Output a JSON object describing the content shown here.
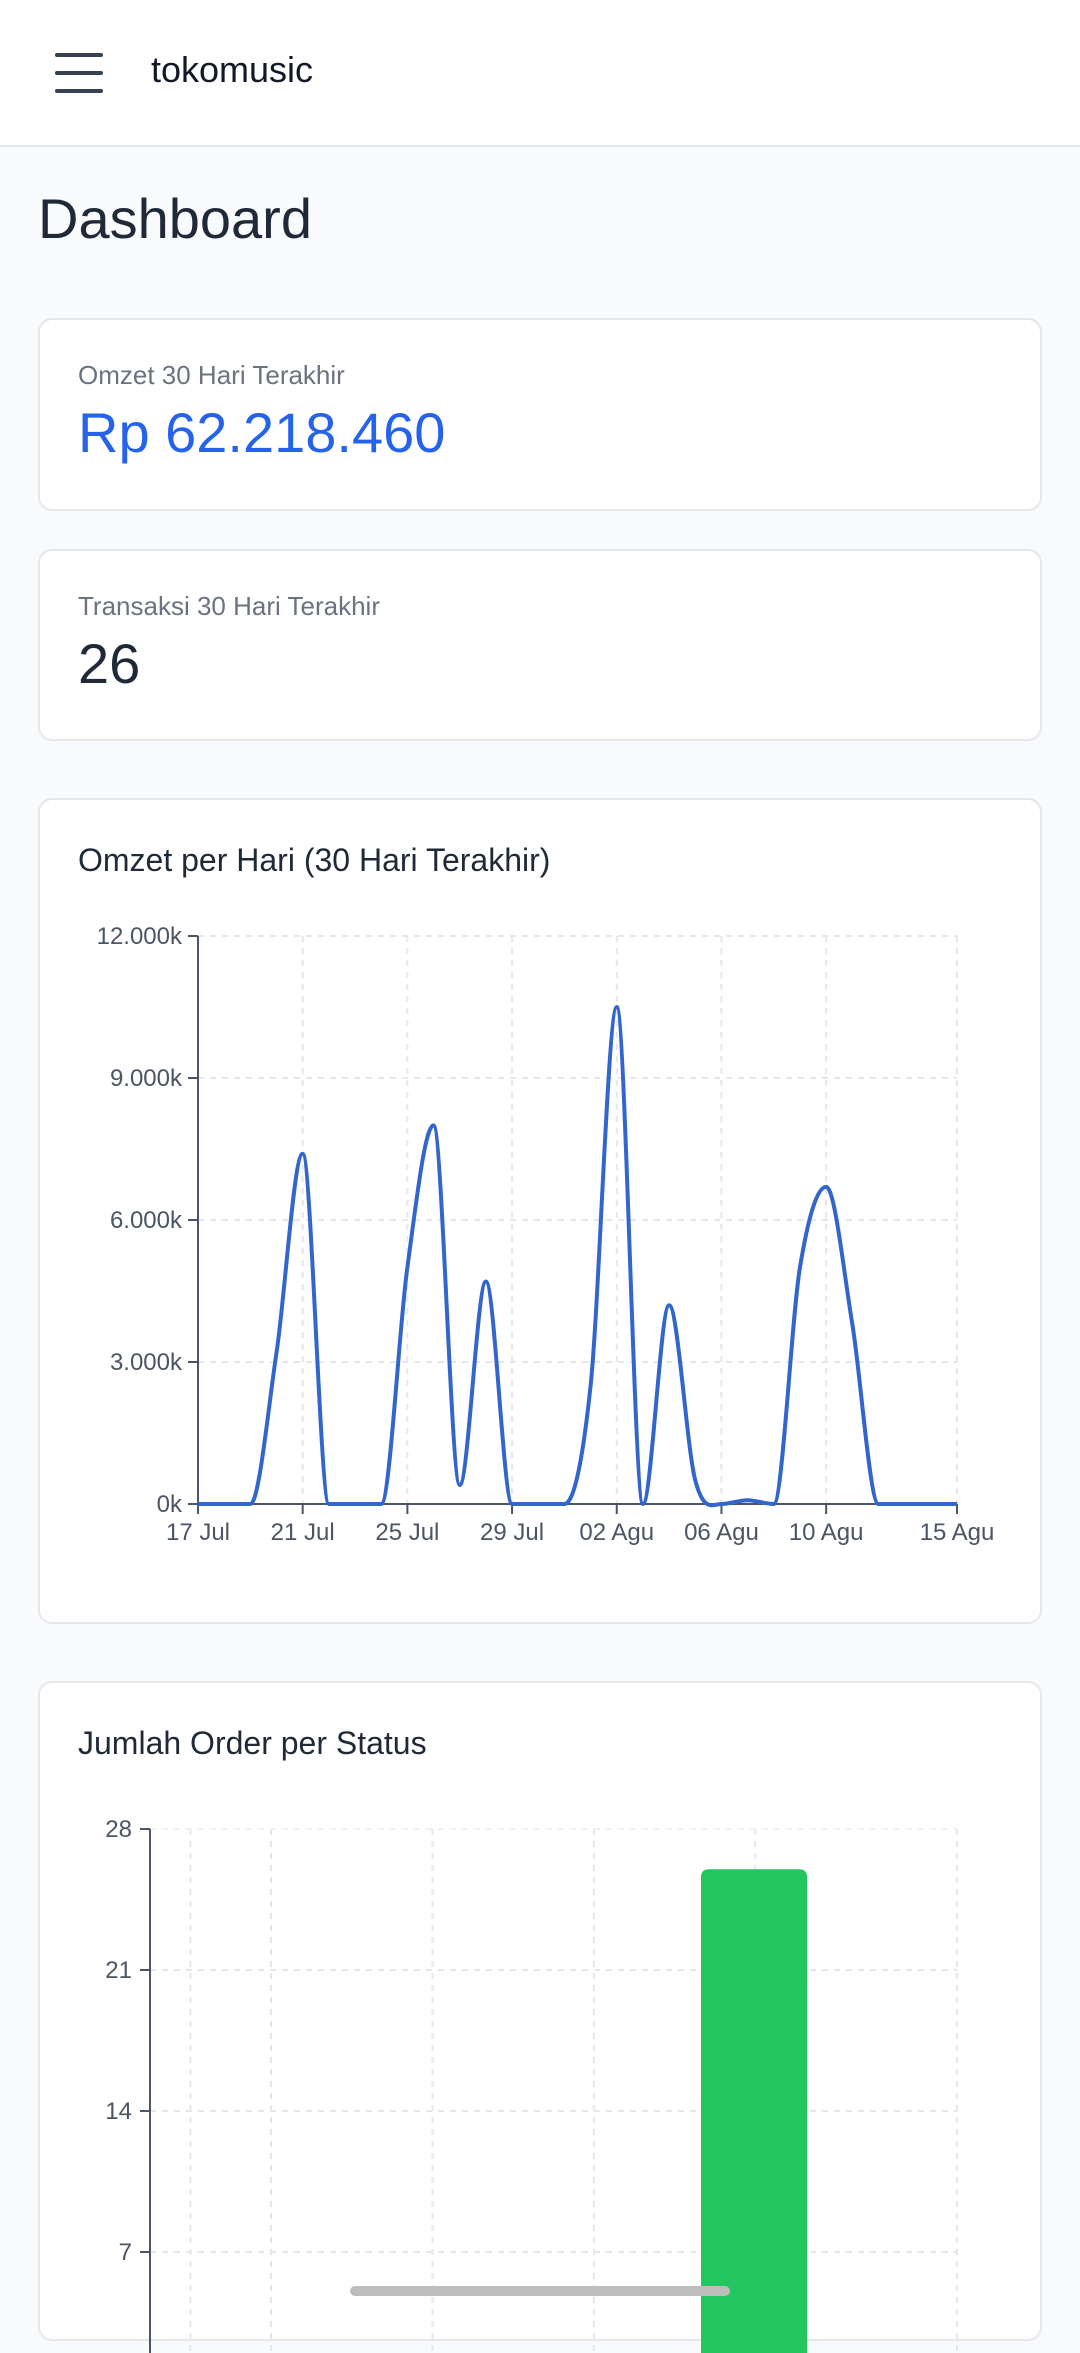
{
  "app": {
    "title": "tokomusic"
  },
  "page": {
    "title": "Dashboard"
  },
  "stats": {
    "revenue": {
      "label": "Omzet 30 Hari Terakhir",
      "value": "Rp 62.218.460"
    },
    "transactions": {
      "label": "Transaksi 30 Hari Terakhir",
      "value": "26"
    }
  },
  "colors": {
    "accent": "#2563eb",
    "line": "#3366cc",
    "bar": "#22c55e"
  },
  "icons": {
    "menu": "hamburger-menu-icon"
  },
  "chart_data": [
    {
      "type": "line",
      "title": "Omzet per Hari (30 Hari Terakhir)",
      "x_ticks": [
        "17 Jul",
        "21 Jul",
        "25 Jul",
        "29 Jul",
        "02 Agu",
        "06 Agu",
        "10 Agu",
        "15 Agu"
      ],
      "y_ticks": [
        "0k",
        "3.000k",
        "6.000k",
        "9.000k",
        "12.000k"
      ],
      "ylim": [
        0,
        12000
      ],
      "y_unit": "k",
      "grid": true,
      "series": [
        {
          "points": [
            [
              "17 Jul",
              0
            ],
            [
              "18 Jul",
              0
            ],
            [
              "19 Jul",
              0
            ],
            [
              "20 Jul",
              3200
            ],
            [
              "21 Jul",
              7400
            ],
            [
              "22 Jul",
              0
            ],
            [
              "23 Jul",
              0
            ],
            [
              "24 Jul",
              0
            ],
            [
              "25 Jul",
              5000
            ],
            [
              "26 Jul",
              8000
            ],
            [
              "27 Jul",
              400
            ],
            [
              "28 Jul",
              4700
            ],
            [
              "29 Jul",
              0
            ],
            [
              "30 Jul",
              0
            ],
            [
              "31 Jul",
              0
            ],
            [
              "01 Agu",
              2500
            ],
            [
              "02 Agu",
              10500
            ],
            [
              "03 Agu",
              0
            ],
            [
              "04 Agu",
              4200
            ],
            [
              "05 Agu",
              500
            ],
            [
              "06 Agu",
              0
            ],
            [
              "07 Agu",
              80
            ],
            [
              "08 Agu",
              0
            ],
            [
              "09 Agu",
              5000
            ],
            [
              "10 Agu",
              6700
            ],
            [
              "11 Agu",
              3800
            ],
            [
              "12 Agu",
              0
            ],
            [
              "13 Agu",
              0
            ],
            [
              "14 Agu",
              0
            ],
            [
              "15 Agu",
              0
            ]
          ]
        }
      ]
    },
    {
      "type": "bar",
      "title": "Jumlah Order per Status",
      "y_ticks": [
        "28",
        "21",
        "14",
        "7"
      ],
      "ylim": [
        0,
        28
      ],
      "grid": true,
      "categories_visible": 5,
      "bars": [
        {
          "category_index": 3,
          "value": 26
        }
      ]
    }
  ]
}
